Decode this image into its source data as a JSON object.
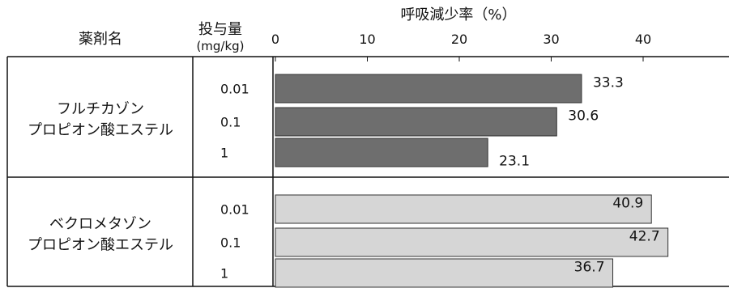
{
  "chart_data": {
    "type": "bar",
    "orientation": "horizontal",
    "title": "",
    "xlabel": "呼吸減少率（%）",
    "xlim": [
      0,
      40
    ],
    "xticks": [
      0,
      10,
      20,
      30,
      40
    ],
    "headers": {
      "drug": "薬剤名",
      "dose_line1": "投与量",
      "dose_line2": "(mg/kg)"
    },
    "groups": [
      {
        "name_line1": "フルチカゾン",
        "name_line2": "プロピオン酸エステル",
        "color": "#6e6e6e",
        "bars": [
          {
            "dose": "0.01",
            "value": 33.3,
            "label": "33.3"
          },
          {
            "dose": "0.1",
            "value": 30.6,
            "label": "30.6"
          },
          {
            "dose": "1",
            "value": 23.1,
            "label": "23.1"
          }
        ]
      },
      {
        "name_line1": "ベクロメタゾン",
        "name_line2": "プロピオン酸エステル",
        "color": "#d6d6d6",
        "bars": [
          {
            "dose": "0.01",
            "value": 40.9,
            "label": "40.9"
          },
          {
            "dose": "0.1",
            "value": 42.7,
            "label": "42.7"
          },
          {
            "dose": "1",
            "value": 36.7,
            "label": "36.7"
          }
        ]
      }
    ],
    "grid": false
  }
}
